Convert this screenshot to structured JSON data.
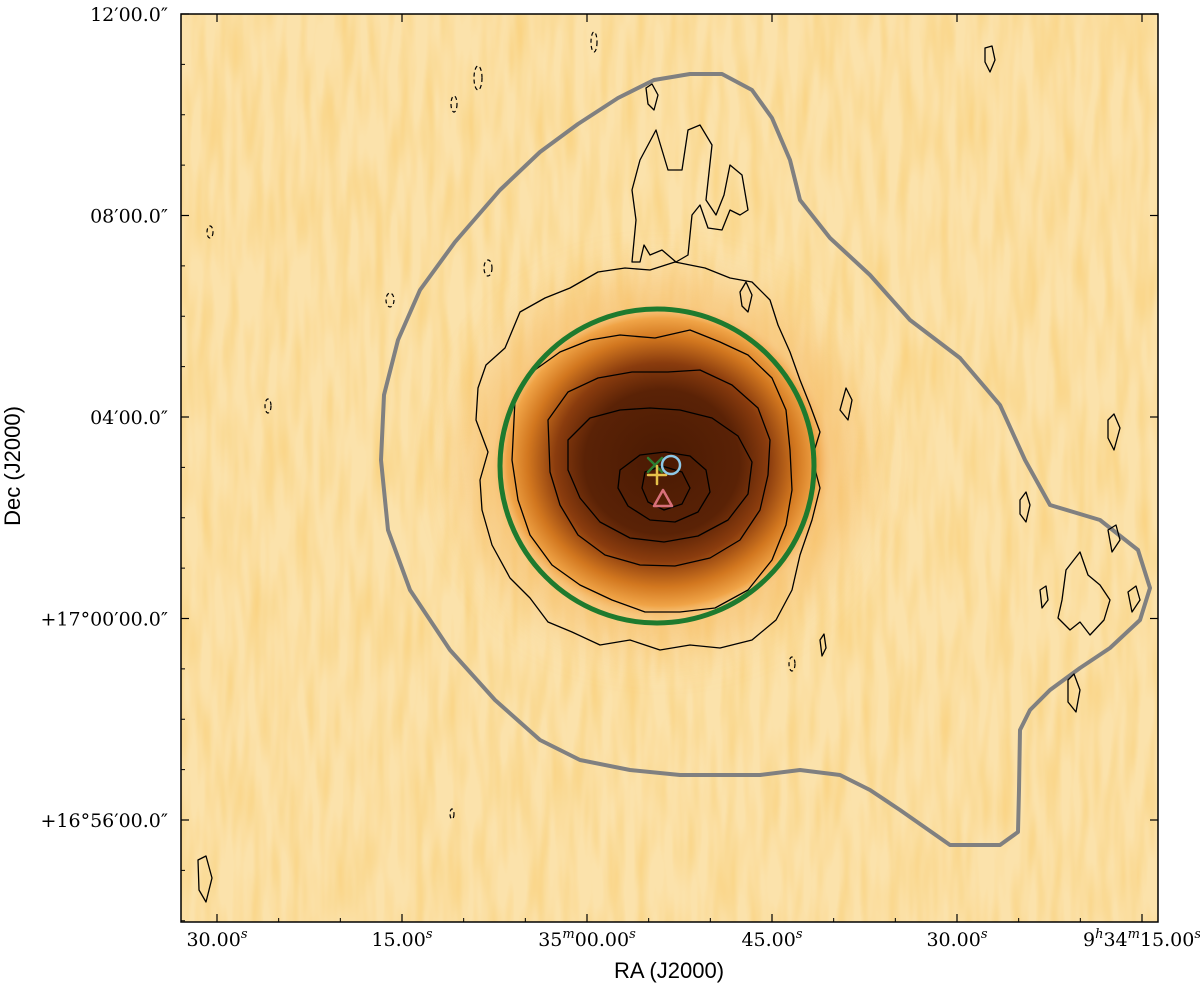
{
  "chart_data": {
    "type": "heatmap",
    "title": "",
    "xlabel": "RA (J2000)",
    "ylabel": "Dec (J2000)",
    "xticks": [
      {
        "main": "30.00",
        "sup": "s"
      },
      {
        "main": "15.00",
        "sup": "s"
      },
      {
        "main": "35",
        "sup": "m",
        "main2": "00.00",
        "sup2": "s"
      },
      {
        "main": "45.00",
        "sup": "s"
      },
      {
        "main": "30.00",
        "sup": "s"
      },
      {
        "main": "9",
        "sup": "h",
        "main2": "34",
        "sup2": "m",
        "main3": "15.00",
        "sup3": "s"
      }
    ],
    "yticks": [
      {
        "text": "12′00.0″"
      },
      {
        "text": "08′00.0″"
      },
      {
        "text": "04′00.0″"
      },
      {
        "text": "+17°00′00.0″"
      },
      {
        "text": "+16°56′00.0″"
      }
    ],
    "colormap": {
      "low": "#fdf4dc",
      "mid": "#f3b15a",
      "high": "#5a2206"
    },
    "background_noise": "streaky, horizontally-elongated speckle",
    "markers": [
      {
        "symbol": "x",
        "color": "#2e7d32",
        "label": "X"
      },
      {
        "symbol": "+",
        "color": "#e6c14a",
        "label": "+"
      },
      {
        "symbol": "circle",
        "color": "#8ec9e8",
        "label": "O"
      },
      {
        "symbol": "triangle",
        "color": "#d8707a",
        "label": "triangle"
      }
    ],
    "overlays": {
      "green_circle_color": "#1e7a2e",
      "gray_contour_color": "#808080",
      "black_contours": "solid positive levels, dashed negative levels"
    },
    "grid": false
  }
}
